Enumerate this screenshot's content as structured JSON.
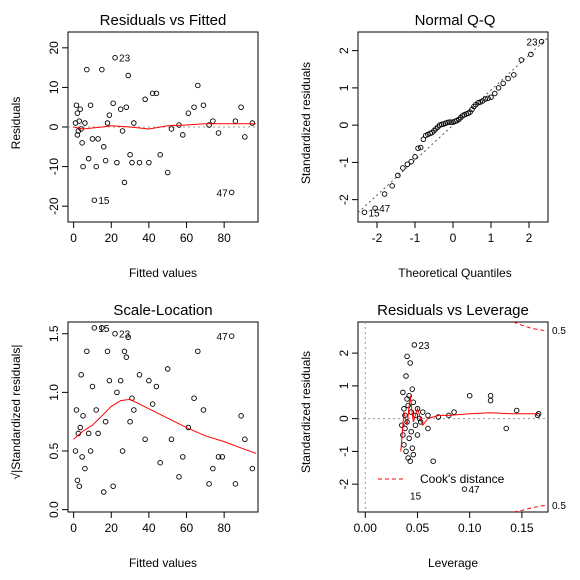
{
  "chart_data": [
    {
      "id": "residuals_vs_fitted",
      "type": "scatter",
      "title": "Residuals vs Fitted",
      "xlabel": "Fitted values",
      "ylabel": "Residuals",
      "xlim": [
        -3,
        98
      ],
      "ylim": [
        -24,
        24
      ],
      "xticks": [
        0,
        20,
        40,
        60,
        80
      ],
      "yticks": [
        -20,
        -10,
        0,
        10,
        20
      ],
      "refline_y": 0,
      "points": [
        [
          1,
          1
        ],
        [
          1.5,
          5.5
        ],
        [
          2,
          3.5
        ],
        [
          2,
          -2
        ],
        [
          2.5,
          -1
        ],
        [
          3,
          1.5
        ],
        [
          3.5,
          4.5
        ],
        [
          4,
          -0.5
        ],
        [
          4.5,
          -4
        ],
        [
          5,
          -10
        ],
        [
          6,
          1
        ],
        [
          7,
          14.5
        ],
        [
          8,
          -8
        ],
        [
          9,
          5.5
        ],
        [
          10,
          -3
        ],
        [
          11,
          -18.5
        ],
        [
          12,
          -10
        ],
        [
          13,
          -3
        ],
        [
          15,
          14.5
        ],
        [
          16,
          -5
        ],
        [
          17,
          -8.5
        ],
        [
          18,
          1
        ],
        [
          19,
          3
        ],
        [
          21,
          6
        ],
        [
          22,
          17.5
        ],
        [
          23,
          -9
        ],
        [
          25,
          4.5
        ],
        [
          26,
          -1
        ],
        [
          27,
          -14
        ],
        [
          28,
          5
        ],
        [
          29,
          13
        ],
        [
          30,
          -7
        ],
        [
          31,
          -9
        ],
        [
          32,
          1
        ],
        [
          35,
          -9
        ],
        [
          38,
          7
        ],
        [
          40,
          -9
        ],
        [
          42,
          8.5
        ],
        [
          44,
          8.5
        ],
        [
          46,
          -7
        ],
        [
          50,
          -11.5
        ],
        [
          52,
          -0.5
        ],
        [
          56,
          0.5
        ],
        [
          58,
          -2
        ],
        [
          61,
          3.5
        ],
        [
          64,
          5
        ],
        [
          66,
          10.5
        ],
        [
          69,
          5.5
        ],
        [
          72,
          0.5
        ],
        [
          74,
          1.5
        ],
        [
          77,
          -1.5
        ],
        [
          84,
          -16.5
        ],
        [
          86,
          1.5
        ],
        [
          89,
          5
        ],
        [
          91,
          -2.5
        ],
        [
          95,
          1
        ]
      ],
      "smooth": [
        [
          0,
          0
        ],
        [
          5,
          -0.5
        ],
        [
          15,
          0
        ],
        [
          20,
          0.3
        ],
        [
          30,
          0
        ],
        [
          40,
          -0.5
        ],
        [
          50,
          0.3
        ],
        [
          60,
          0.5
        ],
        [
          70,
          0.8
        ],
        [
          80,
          0.8
        ],
        [
          90,
          0.8
        ],
        [
          97,
          0.8
        ]
      ],
      "labels": [
        {
          "text": "23",
          "x": 22,
          "y": 17.5
        },
        {
          "text": "15",
          "x": 11,
          "y": -18.5
        },
        {
          "text": "47",
          "x": 84,
          "y": -16.5
        }
      ]
    },
    {
      "id": "normal_qq",
      "type": "scatter",
      "title": "Normal Q-Q",
      "xlabel": "Theoretical Quantiles",
      "ylabel": "Standardized residuals",
      "xlim": [
        -2.5,
        2.5
      ],
      "ylim": [
        -2.6,
        2.5
      ],
      "xticks": [
        -2,
        -1,
        0,
        1,
        2
      ],
      "yticks": [
        -2,
        -1,
        0,
        1,
        2
      ],
      "refline": [
        [
          -2.5,
          -2.35
        ],
        [
          2.5,
          2.35
        ]
      ],
      "points": [
        [
          -2.33,
          -2.34
        ],
        [
          -2.05,
          -2.23
        ],
        [
          -1.8,
          -1.85
        ],
        [
          -1.6,
          -1.63
        ],
        [
          -1.45,
          -1.35
        ],
        [
          -1.32,
          -1.15
        ],
        [
          -1.2,
          -1.05
        ],
        [
          -1.1,
          -0.98
        ],
        [
          -1.0,
          -0.85
        ],
        [
          -0.92,
          -0.62
        ],
        [
          -0.85,
          -0.6
        ],
        [
          -0.78,
          -0.38
        ],
        [
          -0.72,
          -0.28
        ],
        [
          -0.66,
          -0.25
        ],
        [
          -0.6,
          -0.22
        ],
        [
          -0.55,
          -0.2
        ],
        [
          -0.5,
          -0.15
        ],
        [
          -0.45,
          -0.1
        ],
        [
          -0.4,
          -0.05
        ],
        [
          -0.35,
          0
        ],
        [
          -0.3,
          0.02
        ],
        [
          -0.25,
          0.03
        ],
        [
          -0.2,
          0.05
        ],
        [
          -0.15,
          0.07
        ],
        [
          -0.1,
          0.08
        ],
        [
          -0.05,
          0.08
        ],
        [
          0.0,
          0.08
        ],
        [
          0.05,
          0.1
        ],
        [
          0.1,
          0.12
        ],
        [
          0.15,
          0.15
        ],
        [
          0.2,
          0.2
        ],
        [
          0.25,
          0.25
        ],
        [
          0.3,
          0.28
        ],
        [
          0.35,
          0.3
        ],
        [
          0.4,
          0.32
        ],
        [
          0.45,
          0.35
        ],
        [
          0.5,
          0.42
        ],
        [
          0.55,
          0.5
        ],
        [
          0.6,
          0.55
        ],
        [
          0.66,
          0.6
        ],
        [
          0.72,
          0.62
        ],
        [
          0.78,
          0.65
        ],
        [
          0.85,
          0.7
        ],
        [
          0.92,
          0.72
        ],
        [
          1.0,
          0.75
        ],
        [
          1.1,
          0.85
        ],
        [
          1.2,
          1.0
        ],
        [
          1.32,
          1.12
        ],
        [
          1.45,
          1.25
        ],
        [
          1.6,
          1.35
        ],
        [
          1.8,
          1.75
        ],
        [
          2.05,
          1.9
        ],
        [
          2.33,
          2.24
        ]
      ],
      "labels": [
        {
          "text": "23",
          "x": 2.33,
          "y": 2.24
        },
        {
          "text": "15",
          "x": -2.33,
          "y": -2.34
        },
        {
          "text": "47",
          "x": -2.05,
          "y": -2.23
        }
      ]
    },
    {
      "id": "scale_location",
      "type": "scatter",
      "title": "Scale-Location",
      "xlabel": "Fitted values",
      "ylabel": "√|Standardized residuals|",
      "xlim": [
        -3,
        98
      ],
      "ylim": [
        -0.02,
        1.6
      ],
      "xticks": [
        0,
        20,
        40,
        60,
        80
      ],
      "yticks": [
        0.0,
        0.5,
        1.0,
        1.5
      ],
      "ytick_labels": [
        "0.0",
        "0.5",
        "1.0",
        "1.5"
      ],
      "points": [
        [
          1,
          0.5
        ],
        [
          1.5,
          0.85
        ],
        [
          2,
          0.25
        ],
        [
          2.5,
          0.65
        ],
        [
          3,
          0.2
        ],
        [
          3.5,
          0.7
        ],
        [
          4,
          1.15
        ],
        [
          4.5,
          0.45
        ],
        [
          5,
          0.8
        ],
        [
          6,
          0.35
        ],
        [
          7,
          1.35
        ],
        [
          8,
          0.65
        ],
        [
          9,
          0.5
        ],
        [
          10,
          1.05
        ],
        [
          11,
          1.55
        ],
        [
          12,
          0.85
        ],
        [
          13,
          0.65
        ],
        [
          15,
          1.55
        ],
        [
          16,
          0.15
        ],
        [
          17,
          0.75
        ],
        [
          18,
          1.35
        ],
        [
          19,
          1.1
        ],
        [
          21,
          0.2
        ],
        [
          22,
          1.5
        ],
        [
          23,
          1.0
        ],
        [
          25,
          1.1
        ],
        [
          26,
          0.5
        ],
        [
          27,
          1.35
        ],
        [
          28,
          1.3
        ],
        [
          29,
          1.47
        ],
        [
          30,
          0.75
        ],
        [
          31,
          0.95
        ],
        [
          32,
          0.85
        ],
        [
          35,
          1.15
        ],
        [
          38,
          0.6
        ],
        [
          40,
          1.1
        ],
        [
          42,
          0.9
        ],
        [
          44,
          1.05
        ],
        [
          46,
          0.4
        ],
        [
          50,
          1.2
        ],
        [
          52,
          0.6
        ],
        [
          56,
          0.28
        ],
        [
          58,
          0.45
        ],
        [
          61,
          0.7
        ],
        [
          64,
          0.95
        ],
        [
          66,
          1.35
        ],
        [
          69,
          0.85
        ],
        [
          72,
          0.22
        ],
        [
          74,
          0.35
        ],
        [
          77,
          0.45
        ],
        [
          79,
          0.45
        ],
        [
          84,
          1.48
        ],
        [
          86,
          0.22
        ],
        [
          89,
          0.8
        ],
        [
          91,
          0.6
        ],
        [
          95,
          0.35
        ]
      ],
      "smooth": [
        [
          0,
          0.6
        ],
        [
          5,
          0.67
        ],
        [
          10,
          0.72
        ],
        [
          15,
          0.8
        ],
        [
          20,
          0.88
        ],
        [
          25,
          0.93
        ],
        [
          30,
          0.94
        ],
        [
          35,
          0.9
        ],
        [
          40,
          0.86
        ],
        [
          50,
          0.78
        ],
        [
          60,
          0.7
        ],
        [
          70,
          0.63
        ],
        [
          80,
          0.58
        ],
        [
          90,
          0.52
        ],
        [
          97,
          0.48
        ]
      ],
      "labels": [
        {
          "text": "15",
          "x": 11,
          "y": 1.55
        },
        {
          "text": "23",
          "x": 22,
          "y": 1.5
        },
        {
          "text": "47",
          "x": 84,
          "y": 1.48
        }
      ]
    },
    {
      "id": "residuals_vs_leverage",
      "type": "scatter",
      "title": "Residuals vs Leverage",
      "xlabel": "Leverage",
      "ylabel": "Standardized residuals",
      "xlim": [
        -0.007,
        0.175
      ],
      "ylim": [
        -2.85,
        2.95
      ],
      "xticks": [
        0,
        0.05,
        0.1,
        0.15
      ],
      "xtick_labels": [
        "0.00",
        "0.05",
        "0.10",
        "0.15"
      ],
      "yticks": [
        -2,
        -1,
        0,
        1,
        2
      ],
      "refline_y": 0,
      "refline_x": 0,
      "points": [
        [
          0.035,
          -0.2
        ],
        [
          0.036,
          0.8
        ],
        [
          0.036,
          -0.5
        ],
        [
          0.037,
          0.3
        ],
        [
          0.037,
          -0.8
        ],
        [
          0.038,
          0.1
        ],
        [
          0.038,
          -0.3
        ],
        [
          0.039,
          1.3
        ],
        [
          0.039,
          -1.0
        ],
        [
          0.04,
          0.6
        ],
        [
          0.04,
          -0.1
        ],
        [
          0.04,
          1.9
        ],
        [
          0.041,
          0.4
        ],
        [
          0.041,
          -1.2
        ],
        [
          0.042,
          0.7
        ],
        [
          0.042,
          -0.6
        ],
        [
          0.043,
          1.7
        ],
        [
          0.043,
          -1.3
        ],
        [
          0.044,
          0.2
        ],
        [
          0.044,
          -0.4
        ],
        [
          0.045,
          0.9
        ],
        [
          0.045,
          -0.9
        ],
        [
          0.046,
          0.5
        ],
        [
          0.046,
          -1.1
        ],
        [
          0.047,
          2.25
        ],
        [
          0.048,
          0.1
        ],
        [
          0.048,
          -0.2
        ],
        [
          0.05,
          0.3
        ],
        [
          0.05,
          -0.5
        ],
        [
          0.052,
          0.0
        ],
        [
          0.053,
          -0.1
        ],
        [
          0.055,
          0.2
        ],
        [
          0.06,
          -0.3
        ],
        [
          0.06,
          0.1
        ],
        [
          0.065,
          -1.3
        ],
        [
          0.07,
          0.05
        ],
        [
          0.08,
          0.1
        ],
        [
          0.085,
          0.2
        ],
        [
          0.095,
          -2.15
        ],
        [
          0.1,
          0.7
        ],
        [
          0.12,
          0.7
        ],
        [
          0.12,
          0.55
        ],
        [
          0.135,
          -0.3
        ],
        [
          0.145,
          0.25
        ],
        [
          0.165,
          0.1
        ],
        [
          0.166,
          0.15
        ]
      ],
      "smooth": [
        [
          0.034,
          -1.0
        ],
        [
          0.037,
          0.2
        ],
        [
          0.04,
          -0.2
        ],
        [
          0.043,
          0.7
        ],
        [
          0.046,
          -0.1
        ],
        [
          0.05,
          0.3
        ],
        [
          0.055,
          -0.2
        ],
        [
          0.06,
          0.0
        ],
        [
          0.07,
          0.1
        ],
        [
          0.08,
          0.1
        ],
        [
          0.1,
          0.15
        ],
        [
          0.12,
          0.18
        ],
        [
          0.14,
          0.15
        ],
        [
          0.166,
          0.15
        ]
      ],
      "cooks_upper": [
        [
          0.142,
          2.95
        ],
        [
          0.15,
          2.85
        ],
        [
          0.16,
          2.75
        ],
        [
          0.17,
          2.7
        ],
        [
          0.175,
          2.68
        ]
      ],
      "cooks_lower": [
        [
          0.142,
          -2.85
        ],
        [
          0.15,
          -2.8
        ],
        [
          0.16,
          -2.72
        ],
        [
          0.17,
          -2.66
        ],
        [
          0.175,
          -2.64
        ]
      ],
      "cooks_labels": [
        {
          "text": "0.5",
          "y": 2.7
        },
        {
          "text": "0.5",
          "y": -2.64
        }
      ],
      "legend": {
        "label": "Cook's distance",
        "placement": "bottom-left"
      },
      "labels": [
        {
          "text": "23",
          "x": 0.047,
          "y": 2.25
        },
        {
          "text": "15",
          "x": 0.039,
          "y": -2.35
        },
        {
          "text": "47",
          "x": 0.095,
          "y": -2.15
        }
      ],
      "colors": {
        "points": "#000000",
        "smooth": "#ff0000",
        "reference": "#999999"
      }
    }
  ]
}
